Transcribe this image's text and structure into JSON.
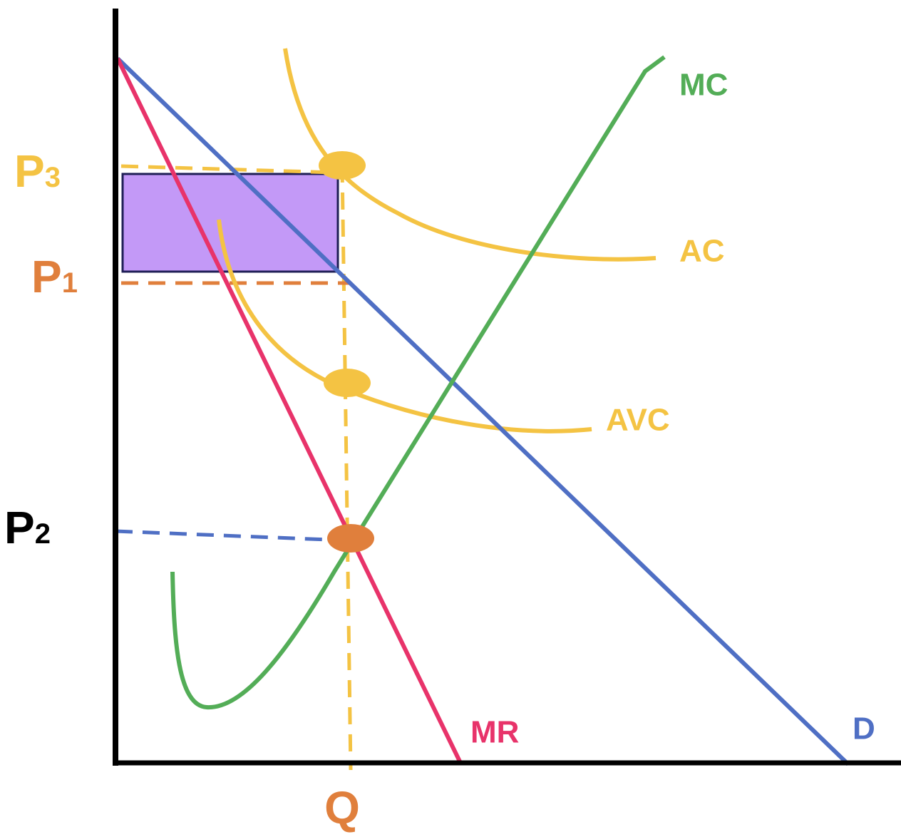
{
  "labels": {
    "p3": {
      "letter": "P",
      "sub": "3"
    },
    "p1": {
      "letter": "P",
      "sub": "1"
    },
    "p2": {
      "letter": "P",
      "sub": "2"
    },
    "q": "Q",
    "mc": "MC",
    "ac": "AC",
    "avc": "AVC",
    "mr": "MR",
    "d": "D"
  }
}
